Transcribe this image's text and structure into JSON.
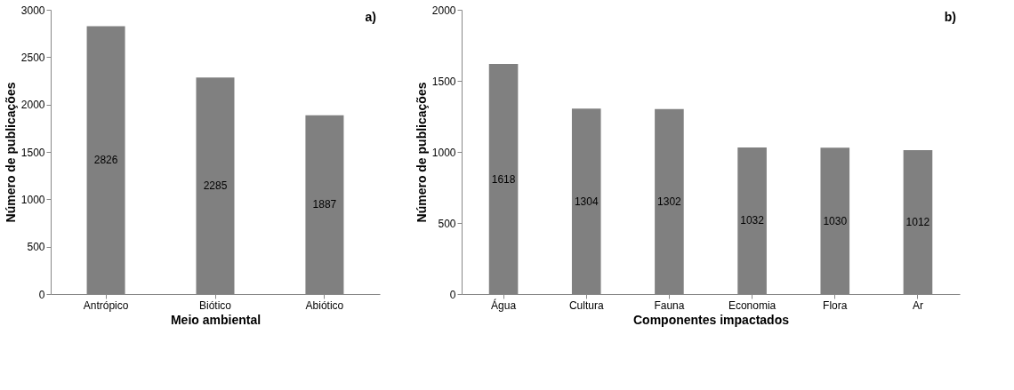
{
  "chart_data": [
    {
      "type": "bar",
      "categories": [
        "Antrópico",
        "Biótico",
        "Abiótico"
      ],
      "values": [
        2826,
        2285,
        1887
      ],
      "color": "#808080",
      "xlabel": "Meio ambiental",
      "ylabel": "Número de publicações",
      "ylim": [
        0,
        3000
      ],
      "yticks": [
        0,
        500,
        1000,
        1500,
        2000,
        2500,
        3000
      ],
      "data_labels": true,
      "grid": false,
      "annotations": [
        "a)"
      ]
    },
    {
      "type": "bar",
      "categories": [
        "Água",
        "Cultura",
        "Fauna",
        "Economia",
        "Flora",
        "Ar"
      ],
      "values": [
        1618,
        1304,
        1302,
        1032,
        1030,
        1012
      ],
      "color": "#808080",
      "xlabel": "Componentes impactados",
      "ylabel": "Número de publicações",
      "ylim": [
        0,
        2000
      ],
      "yticks": [
        0,
        500,
        1000,
        1500,
        2000
      ],
      "data_labels": true,
      "grid": false,
      "annotations": [
        "b)"
      ]
    }
  ]
}
